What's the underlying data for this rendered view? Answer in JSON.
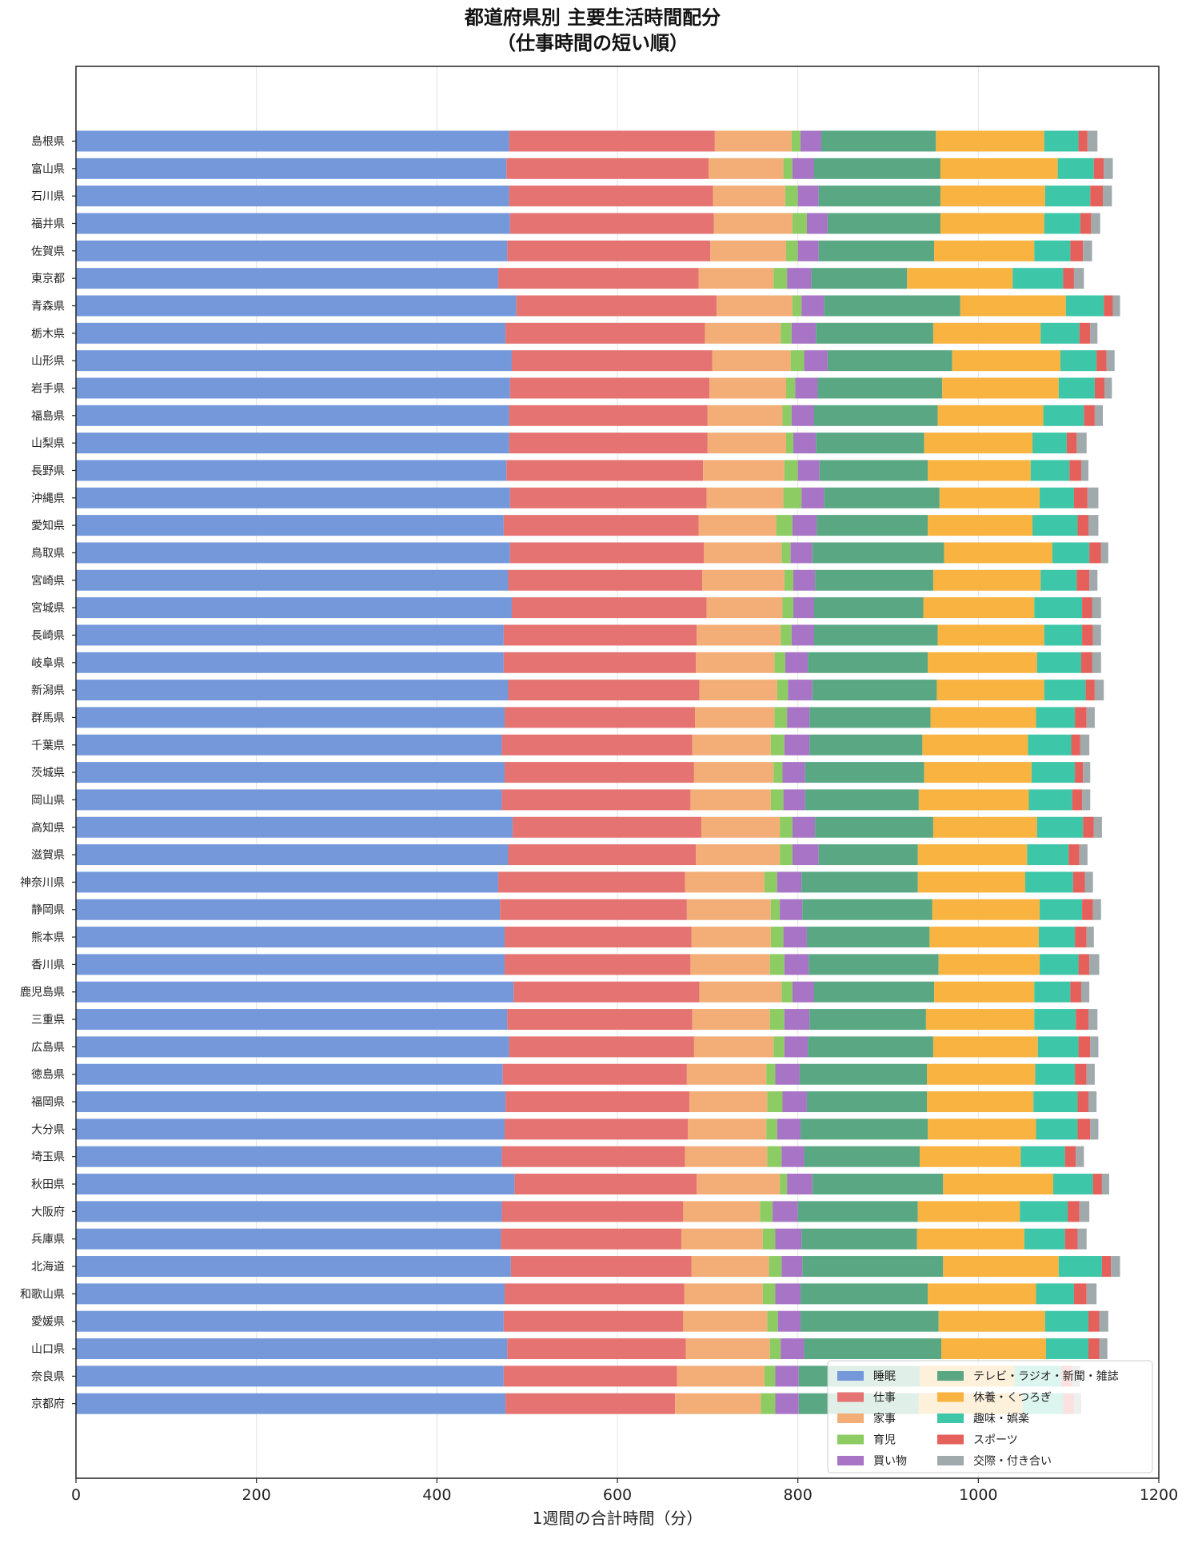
{
  "chart_data": {
    "type": "bar",
    "orientation": "horizontal",
    "stacked": true,
    "title": [
      "都道府県別 主要生活時間配分",
      "（仕事時間の短い順）"
    ],
    "xlabel": "1週間の合計時間（分）",
    "ylabel": "",
    "xlim": [
      0,
      1200
    ],
    "xticks": [
      0,
      200,
      400,
      600,
      800,
      1000,
      1200
    ],
    "grid": "vertical",
    "legend_position": "bottom-right",
    "categories": [
      "島根県",
      "富山県",
      "石川県",
      "福井県",
      "佐賀県",
      "東京都",
      "青森県",
      "栃木県",
      "山形県",
      "岩手県",
      "福島県",
      "山梨県",
      "長野県",
      "沖縄県",
      "愛知県",
      "鳥取県",
      "宮崎県",
      "宮城県",
      "長崎県",
      "岐阜県",
      "新潟県",
      "群馬県",
      "千葉県",
      "茨城県",
      "岡山県",
      "高知県",
      "滋賀県",
      "神奈川県",
      "静岡県",
      "熊本県",
      "香川県",
      "鹿児島県",
      "三重県",
      "広島県",
      "徳島県",
      "福岡県",
      "大分県",
      "埼玉県",
      "秋田県",
      "大阪府",
      "兵庫県",
      "北海道",
      "和歌山県",
      "愛媛県",
      "山口県",
      "奈良県",
      "京都府"
    ],
    "series": [
      {
        "name": "睡眠",
        "color": "#7598db",
        "values": [
          480,
          477,
          480,
          481,
          478,
          468,
          488,
          476,
          483,
          481,
          480,
          480,
          477,
          481,
          474,
          481,
          479,
          483,
          474,
          474,
          479,
          475,
          472,
          475,
          472,
          484,
          479,
          468,
          470,
          475,
          475,
          485,
          478,
          480,
          473,
          476,
          475,
          472,
          486,
          472,
          471,
          482,
          475,
          474,
          478,
          474,
          476
        ]
      },
      {
        "name": "仕事",
        "color": "#e47372",
        "values": [
          228,
          224,
          226,
          226,
          225,
          222,
          222,
          221,
          222,
          221,
          220,
          220,
          218,
          218,
          216,
          215,
          215,
          216,
          214,
          213,
          212,
          211,
          211,
          210,
          209,
          209,
          208,
          207,
          207,
          207,
          206,
          206,
          205,
          205,
          204,
          204,
          203,
          203,
          202,
          201,
          200,
          200,
          199,
          199,
          198,
          192,
          188
        ]
      },
      {
        "name": "家事",
        "color": "#f3ae78",
        "values": [
          85,
          83,
          80,
          87,
          84,
          83,
          84,
          84,
          87,
          85,
          83,
          87,
          90,
          85,
          86,
          86,
          91,
          84,
          93,
          87,
          86,
          88,
          87,
          88,
          89,
          87,
          93,
          88,
          93,
          88,
          88,
          91,
          86,
          88,
          88,
          86,
          87,
          91,
          92,
          85,
          90,
          86,
          87,
          93,
          93,
          97,
          95
        ]
      },
      {
        "name": "育児",
        "color": "#8ccc63",
        "values": [
          10,
          10,
          14,
          16,
          13,
          15,
          10,
          12,
          15,
          10,
          10,
          8,
          15,
          20,
          18,
          10,
          10,
          12,
          12,
          12,
          12,
          14,
          15,
          10,
          14,
          14,
          14,
          14,
          10,
          14,
          16,
          12,
          16,
          12,
          10,
          17,
          12,
          16,
          8,
          14,
          14,
          14,
          14,
          12,
          12,
          12,
          16
        ]
      },
      {
        "name": "買い物",
        "color": "#a874c5",
        "values": [
          23,
          24,
          23,
          23,
          23,
          27,
          25,
          27,
          26,
          25,
          25,
          25,
          24,
          25,
          27,
          24,
          24,
          23,
          25,
          25,
          27,
          25,
          28,
          25,
          24,
          25,
          29,
          27,
          25,
          26,
          27,
          24,
          28,
          26,
          27,
          27,
          26,
          25,
          28,
          28,
          29,
          23,
          28,
          25,
          26,
          26,
          26
        ]
      },
      {
        "name": "テレビ・ラジオ・新聞・雑誌",
        "color": "#59a883",
        "values": [
          127,
          140,
          135,
          125,
          128,
          106,
          151,
          130,
          138,
          138,
          137,
          120,
          120,
          128,
          123,
          146,
          131,
          121,
          137,
          133,
          138,
          134,
          125,
          132,
          126,
          131,
          110,
          129,
          144,
          136,
          144,
          133,
          129,
          139,
          141,
          133,
          141,
          128,
          145,
          133,
          128,
          156,
          141,
          153,
          152,
          134,
          133
        ]
      },
      {
        "name": "休養・くつろぎ",
        "color": "#f9b340",
        "values": [
          120,
          130,
          116,
          115,
          111,
          117,
          117,
          119,
          120,
          129,
          117,
          120,
          114,
          111,
          116,
          120,
          119,
          123,
          118,
          121,
          119,
          117,
          117,
          119,
          122,
          115,
          121,
          119,
          119,
          121,
          112,
          111,
          120,
          116,
          120,
          118,
          120,
          112,
          122,
          113,
          119,
          128,
          120,
          118,
          116,
          105,
          115
        ]
      },
      {
        "name": "趣味・娯楽",
        "color": "#3dc6a8",
        "values": [
          38,
          40,
          50,
          40,
          40,
          56,
          42,
          43,
          40,
          40,
          45,
          38,
          43,
          38,
          50,
          41,
          40,
          53,
          42,
          49,
          46,
          43,
          48,
          48,
          48,
          51,
          46,
          53,
          47,
          40,
          43,
          40,
          46,
          45,
          44,
          49,
          46,
          49,
          44,
          53,
          45,
          48,
          42,
          48,
          47,
          52,
          45
        ]
      },
      {
        "name": "スポーツ",
        "color": "#e5605a",
        "values": [
          10,
          11,
          14,
          12,
          14,
          12,
          10,
          12,
          11,
          11,
          12,
          11,
          13,
          15,
          12,
          13,
          14,
          11,
          12,
          12,
          10,
          13,
          10,
          9,
          11,
          12,
          12,
          13,
          12,
          13,
          12,
          12,
          14,
          13,
          13,
          12,
          14,
          12,
          10,
          13,
          14,
          10,
          14,
          12,
          12,
          12,
          12
        ]
      },
      {
        "name": "交際・付き合い",
        "color": "#a0a9ab",
        "values": [
          11,
          10,
          10,
          10,
          10,
          11,
          8,
          8,
          9,
          8,
          9,
          11,
          8,
          12,
          11,
          8,
          9,
          10,
          9,
          10,
          10,
          9,
          10,
          8,
          9,
          9,
          9,
          9,
          9,
          8,
          11,
          9,
          10,
          9,
          9,
          9,
          9,
          9,
          8,
          11,
          10,
          10,
          11,
          10,
          9,
          9,
          8
        ]
      }
    ]
  }
}
